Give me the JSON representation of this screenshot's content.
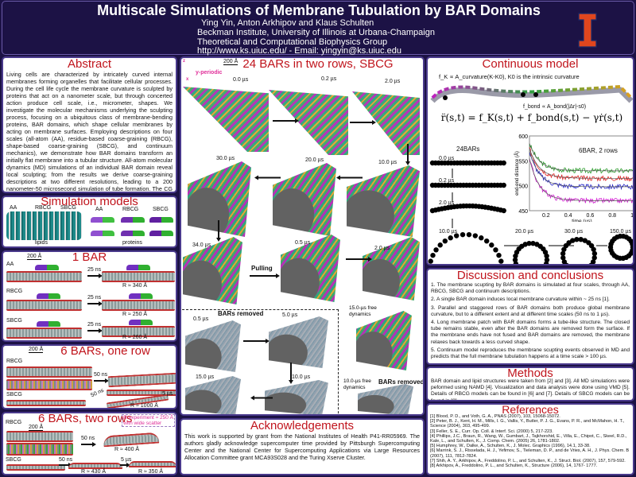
{
  "header": {
    "title": "Multiscale Simulations of Membrane Tubulation by BAR Domains",
    "authors": "Ying Yin, Anton Arkhipov and Klaus Schulten",
    "institution": "Beckman Institute, University of Illinois at Urbana-Champaign",
    "group": "Theoretical and Computational Biophysics Group",
    "contact": "http://www.ks.uiuc.edu/ - Email: yingyin@ks.uiuc.edu",
    "logo_text": "I"
  },
  "colors": {
    "background": "#1c1245",
    "heading": "#c0141c",
    "border": "#4a3a8c",
    "highlight": "#e0309a"
  },
  "abstract": {
    "title": "Abstract",
    "text": "Living cells are characterized by intricately curved internal membranes forming organelles that facilitate cellular processes. During the cell life cycle the membrane curvature is sculpted by proteins that act on a nanometer scale, but through concerted action produce cell scale, i.e., micrometer, shapes. We investigate the molecular mechanisms underlying the sculpting process, focusing on a ubiquitous class of membrane-bending proteins, BAR domains, which shape cellular membranes by acting on membrane surfaces. Employing descriptions on four scales (all-atom (AA), residue-based coarse-graining (RBCG), shape-based coarse-graining (SBCG), and continuum mechanics), we demonstrate how BAR domains transform an initially flat membrane into a tubular structure. All-atom molecular dynamics (MD) simulations of an individual BAR domain reveal local sculpting; from the results we derive coarse-graining descriptions at two different resolutions, leading to a 200 nanometer-50 microsecond simulation of tube formation. The CG simulations are captured into a mathematical model based on continuum mechanics. The results of our study offer a detailed picture of the development of cellular structures through the concerted action of BAR domains."
  },
  "sim_models": {
    "title": "Simulation models",
    "aa": "AA",
    "rbcg": "RBCG",
    "sbcg": "SBCG",
    "lipids": "lipids",
    "proteins": "proteins"
  },
  "one_bar": {
    "title": "1 BAR",
    "scale": "200 Å",
    "rows": [
      {
        "model": "AA",
        "time": "25 ns",
        "radius": "R ≈ 340 Å"
      },
      {
        "model": "RBCG",
        "time": "25 ns",
        "radius": "R ≈ 250 Å"
      },
      {
        "model": "SBCG",
        "time": "25 ns",
        "radius": "R ≈ 260 Å"
      }
    ]
  },
  "six_one_row": {
    "title": "6 BARs, one row",
    "scale": "200 Å",
    "rbcg": "RBCG",
    "sbcg": "SBCG",
    "t1": "50 ns",
    "t2": "50 ns",
    "t3": "5 µs",
    "radius": "R ≈ 1000 Å"
  },
  "six_two_rows": {
    "title": "6 BARs, two rows",
    "scale": "200 Å",
    "rbcg": "RBCG",
    "sbcg": "SBCG",
    "note1": "R experiment ≈ 250 Å",
    "note2": "with wide scatter",
    "t1": "50 ns",
    "r1": "R ≈ 400 Å",
    "t2": "50 ns",
    "r2": "R ≈ 430 Å",
    "t3": "5 µs",
    "r3": "R ≈ 350 Å"
  },
  "center": {
    "title": "24 BARs in two rows, SBCG",
    "scale": "200 Å",
    "axis": "y-periodic",
    "axis_z": "z",
    "axis_x": "x",
    "times": [
      "0.0 µs",
      "0.2 µs",
      "2.0 µs",
      "30.0 µs",
      "20.0 µs",
      "10.0 µs",
      "34.0 µs",
      "0.5 µs",
      "2.0 µs",
      "0.5 µs",
      "5.0 µs",
      "15.0 µs",
      "10.0 µs"
    ],
    "pulling": "Pulling",
    "bars_removed": "BARs removed",
    "free15": "15.0-µs free dynamics",
    "free10": "10.0-µs free dynamics"
  },
  "ack": {
    "title": "Acknowledgements",
    "text": "This work is supported by grant from the National Institutes of Health P41-RR05969. The authors gladly acknowledge supercomputer time provided by Pittsburgh Supercomputing Center and the National Center for Supercomputing Applications via Large Resources Allocation Committee grant MCA93S028 and the Turing Xserve Cluster."
  },
  "continuous": {
    "title": "Continuous model",
    "fk": "f_K ∝ A_curvature(K-K0), K0 is the intrinsic curvature",
    "fbond": "f_bond ∝ A_bond(|Δr|-s0)",
    "equation": "r̈(s,t) = f_K(s,t) + f_bond(s,t) − γṙ(s,t)",
    "chain_title": "24BARs",
    "chain_times": [
      "0.0 µs",
      "0.2 µs",
      "2.0 µs",
      "10.0 µs",
      "20.0 µs",
      "30.0 µs",
      "150.0 µs"
    ],
    "plot": {
      "title": "6BAR, 2 rows",
      "xlabel": "time (µs)",
      "ylabel": "end-end distance (Å)",
      "xticks": [
        "0.2",
        "0.4",
        "0.6",
        "0.8",
        "1.0"
      ],
      "yticks": [
        "600",
        "550",
        "500",
        "450"
      ],
      "xlim": [
        0.05,
        1.0
      ],
      "ylim": [
        450,
        600
      ],
      "series": [
        {
          "color": "#2a9a2a",
          "start": 585,
          "plateau": 530
        },
        {
          "color": "#e02020",
          "start": 575,
          "plateau": 515
        },
        {
          "color": "#2828c8",
          "start": 570,
          "plateau": 498
        },
        {
          "color": "#d020d0",
          "start": 555,
          "plateau": 470
        }
      ]
    }
  },
  "discussion": {
    "title": "Discussion and conclusions",
    "items": [
      "1. The membrane scupting by BAR domains is simulated at four scales, through AA, RBCG, SBCG and continuum descriptions.",
      "2. A single BAR domain induces local membrane curvature within ~ 25 ns [1].",
      "3. Parallel and staggered rows of BAR domains both produce global membrane curvature, but to a different extent and at different time scales (50 ns to 1 µs).",
      "4. Long membrane patch with BAR domains forms a tube-like structure. The closed tube remains stable, even after the BAR domains are removed form the surface. If the membrane ends have not fused and BAR domains are removed, the membrane relaxes back towards a less curved shape.",
      "5. Continuum model reproduces the membrane scupting events observed in MD and predicts that the full membrane tubulation happens at a time scale > 100 µs."
    ]
  },
  "methods": {
    "title": "Methods",
    "text": "BAR domain and lipid structures were taken from [2] and [3]. All MD simulations were peformed using NAMD [4]. Visualization and data analysis were done using VMD [5]. Details of RBCG models can be found in [6] and [7]. Details of SBCG models can be found in [8]."
  },
  "references": {
    "title": "References",
    "items": [
      "[1] Blood, P. D., and Voth, G. A., PNAS (2007), 103, 15068-15072.",
      "[2] Peter, B. J., Kent, H. M., Mills, I. G., Vallis, Y., Butler, P. J. G., Evans, P. R., and McMahon, H. T., Science (2004), 303, 495-499.",
      "[3] Feller, S. E., Curr. Op. Coll. & Interf. Sci. (2000) 5, 217-223.",
      "[4] Phillips, J.C., Braun, R., Wang, W., Gumbart, J., Tajkhorshid, E., Villa, E., Chipot, C., Skeel, R.D., Kale, L., and Schulten, K., J. Comp. Chem. (2005) 26, 1781-1802.",
      "[5] Humphrey, W., Dalke, A., Schulten, K., J. Molec. Graphics (1996), 14.1, 33-38.",
      "[6] Marrink, S. J., Risselada, H. J., Yefimov, S., Tieleman, D. P., and de Vries, A. H., J. Phys. Chem. B (2007), 111, 7812-7824.",
      "[7] Shih, A. Y., Arkhipov, A., Freddolino, P. L., and Schulten, K., J. Struct. Biol. (2007), 157, 579-592.",
      "[8] Arkhipov, A., Freddolino, P. L., and Schulten, K., Structure (2006), 14, 1767- 1777."
    ]
  }
}
